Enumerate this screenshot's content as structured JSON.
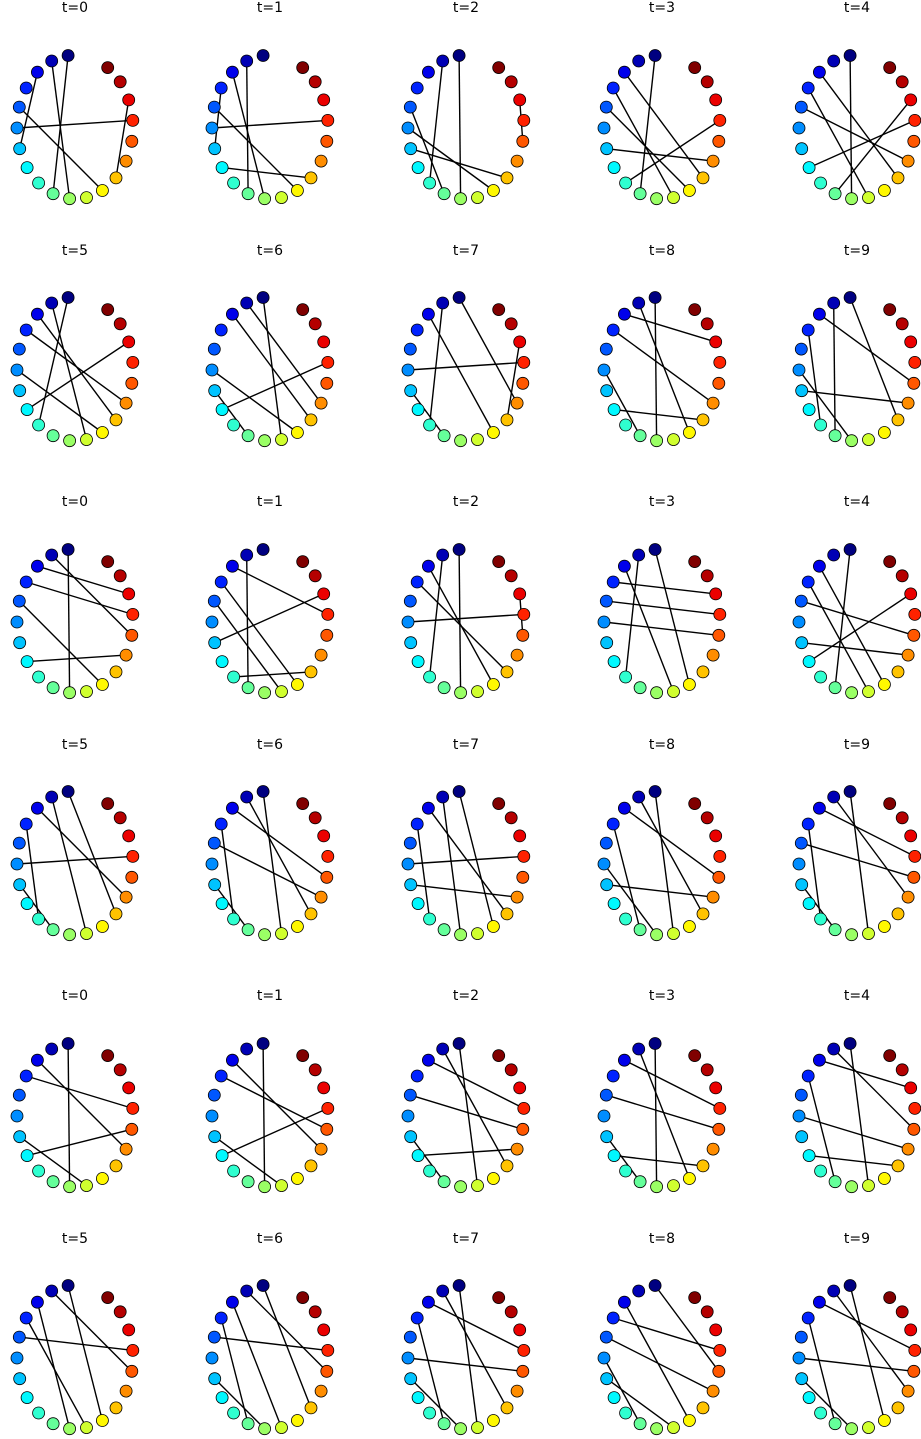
{
  "figure": {
    "node_count": 20,
    "colormap": "jet",
    "blocks": [
      {
        "name": "block-1",
        "panels": [
          {
            "title": "t=0",
            "edges": [
              [
                0,
                9
              ],
              [
                1,
                10
              ],
              [
                2,
                6
              ],
              [
                4,
                12
              ],
              [
                5,
                16
              ],
              [
                13,
                17
              ]
            ]
          },
          {
            "title": "t=1",
            "edges": [
              [
                1,
                9
              ],
              [
                2,
                10
              ],
              [
                3,
                6
              ],
              [
                5,
                16
              ],
              [
                7,
                13
              ],
              [
                4,
                12
              ]
            ]
          },
          {
            "title": "t=2",
            "edges": [
              [
                0,
                10
              ],
              [
                1,
                8
              ],
              [
                5,
                12
              ],
              [
                6,
                13
              ],
              [
                4,
                9
              ],
              [
                15,
                17
              ]
            ]
          },
          {
            "title": "t=3",
            "edges": [
              [
                0,
                9
              ],
              [
                2,
                13
              ],
              [
                3,
                11
              ],
              [
                6,
                14
              ],
              [
                4,
                12
              ],
              [
                16,
                8
              ]
            ]
          },
          {
            "title": "t=4",
            "edges": [
              [
                0,
                10
              ],
              [
                2,
                13
              ],
              [
                3,
                11
              ],
              [
                4,
                14
              ],
              [
                16,
                7
              ],
              [
                17,
                9
              ]
            ]
          },
          {
            "title": "t=5",
            "edges": [
              [
                0,
                8
              ],
              [
                1,
                11
              ],
              [
                2,
                13
              ],
              [
                3,
                14
              ],
              [
                5,
                12
              ],
              [
                17,
                7
              ]
            ]
          },
          {
            "title": "t=6",
            "edges": [
              [
                0,
                11
              ],
              [
                1,
                14
              ],
              [
                2,
                13
              ],
              [
                5,
                12
              ],
              [
                6,
                9
              ],
              [
                7,
                16
              ]
            ]
          },
          {
            "title": "t=7",
            "edges": [
              [
                0,
                14
              ],
              [
                1,
                8
              ],
              [
                2,
                12
              ],
              [
                5,
                16
              ],
              [
                6,
                9
              ],
              [
                13,
                17
              ]
            ]
          },
          {
            "title": "t=8",
            "edges": [
              [
                0,
                10
              ],
              [
                1,
                12
              ],
              [
                2,
                17
              ],
              [
                3,
                14
              ],
              [
                5,
                9
              ],
              [
                7,
                13
              ]
            ]
          },
          {
            "title": "t=9",
            "edges": [
              [
                0,
                13
              ],
              [
                1,
                9
              ],
              [
                2,
                15
              ],
              [
                3,
                8
              ],
              [
                5,
                10
              ],
              [
                6,
                14
              ]
            ]
          }
        ]
      },
      {
        "name": "block-2",
        "panels": [
          {
            "title": "t=0",
            "edges": [
              [
                0,
                10
              ],
              [
                1,
                15
              ],
              [
                3,
                16
              ],
              [
                4,
                12
              ],
              [
                7,
                14
              ],
              [
                2,
                17
              ]
            ]
          },
          {
            "title": "t=1",
            "edges": [
              [
                1,
                9
              ],
              [
                2,
                16
              ],
              [
                3,
                12
              ],
              [
                4,
                11
              ],
              [
                6,
                17
              ],
              [
                13,
                8
              ]
            ]
          },
          {
            "title": "t=2",
            "edges": [
              [
                0,
                10
              ],
              [
                1,
                8
              ],
              [
                2,
                12
              ],
              [
                3,
                13
              ],
              [
                5,
                16
              ],
              [
                15,
                17
              ]
            ]
          },
          {
            "title": "t=3",
            "edges": [
              [
                0,
                12
              ],
              [
                1,
                8
              ],
              [
                2,
                11
              ],
              [
                4,
                16
              ],
              [
                5,
                15
              ],
              [
                17,
                3
              ]
            ]
          },
          {
            "title": "t=4",
            "edges": [
              [
                0,
                9
              ],
              [
                2,
                12
              ],
              [
                3,
                11
              ],
              [
                4,
                15
              ],
              [
                6,
                14
              ],
              [
                17,
                7
              ]
            ]
          },
          {
            "title": "t=5",
            "edges": [
              [
                0,
                13
              ],
              [
                1,
                11
              ],
              [
                2,
                14
              ],
              [
                3,
                8
              ],
              [
                5,
                16
              ],
              [
                6,
                9
              ]
            ]
          },
          {
            "title": "t=6",
            "edges": [
              [
                0,
                11
              ],
              [
                1,
                13
              ],
              [
                2,
                15
              ],
              [
                3,
                8
              ],
              [
                6,
                9
              ],
              [
                4,
                14
              ]
            ]
          },
          {
            "title": "t=7",
            "edges": [
              [
                0,
                12
              ],
              [
                1,
                10
              ],
              [
                2,
                13
              ],
              [
                3,
                8
              ],
              [
                5,
                16
              ],
              [
                6,
                14
              ]
            ]
          },
          {
            "title": "t=8",
            "edges": [
              [
                0,
                11
              ],
              [
                1,
                13
              ],
              [
                2,
                15
              ],
              [
                3,
                9
              ],
              [
                5,
                10
              ],
              [
                6,
                14
              ]
            ]
          },
          {
            "title": "t=9",
            "edges": [
              [
                0,
                11
              ],
              [
                1,
                14
              ],
              [
                2,
                16
              ],
              [
                3,
                8
              ],
              [
                6,
                9
              ],
              [
                4,
                15
              ]
            ]
          }
        ]
      },
      {
        "name": "block-3",
        "panels": [
          {
            "title": "t=0",
            "edges": [
              [
                0,
                10
              ],
              [
                2,
                14
              ],
              [
                3,
                16
              ],
              [
                6,
                11
              ],
              [
                7,
                15
              ]
            ]
          },
          {
            "title": "t=1",
            "edges": [
              [
                0,
                10
              ],
              [
                2,
                14
              ],
              [
                3,
                15
              ],
              [
                6,
                11
              ],
              [
                7,
                16
              ]
            ]
          },
          {
            "title": "t=2",
            "edges": [
              [
                0,
                11
              ],
              [
                1,
                13
              ],
              [
                2,
                16
              ],
              [
                4,
                15
              ],
              [
                6,
                9
              ],
              [
                7,
                14
              ]
            ]
          },
          {
            "title": "t=3",
            "edges": [
              [
                0,
                10
              ],
              [
                1,
                12
              ],
              [
                2,
                16
              ],
              [
                4,
                15
              ],
              [
                6,
                9
              ],
              [
                7,
                13
              ]
            ]
          },
          {
            "title": "t=4",
            "edges": [
              [
                0,
                11
              ],
              [
                1,
                15
              ],
              [
                2,
                17
              ],
              [
                3,
                9
              ],
              [
                5,
                14
              ],
              [
                7,
                13
              ]
            ]
          },
          {
            "title": "t=5",
            "edges": [
              [
                0,
                12
              ],
              [
                1,
                15
              ],
              [
                2,
                10
              ],
              [
                3,
                11
              ],
              [
                4,
                16
              ]
            ]
          },
          {
            "title": "t=6",
            "edges": [
              [
                0,
                13
              ],
              [
                1,
                15
              ],
              [
                2,
                11
              ],
              [
                3,
                9
              ],
              [
                4,
                16
              ],
              [
                6,
                10
              ]
            ]
          },
          {
            "title": "t=7",
            "edges": [
              [
                0,
                11
              ],
              [
                1,
                13
              ],
              [
                2,
                16
              ],
              [
                3,
                9
              ],
              [
                5,
                15
              ],
              [
                6,
                10
              ]
            ]
          },
          {
            "title": "t=8",
            "edges": [
              [
                0,
                15
              ],
              [
                2,
                12
              ],
              [
                3,
                16
              ],
              [
                5,
                9
              ],
              [
                6,
                11
              ],
              [
                4,
                14
              ]
            ]
          },
          {
            "title": "t=9",
            "edges": [
              [
                0,
                12
              ],
              [
                1,
                14
              ],
              [
                2,
                16
              ],
              [
                3,
                9
              ],
              [
                5,
                15
              ],
              [
                6,
                10
              ]
            ]
          }
        ]
      }
    ]
  }
}
